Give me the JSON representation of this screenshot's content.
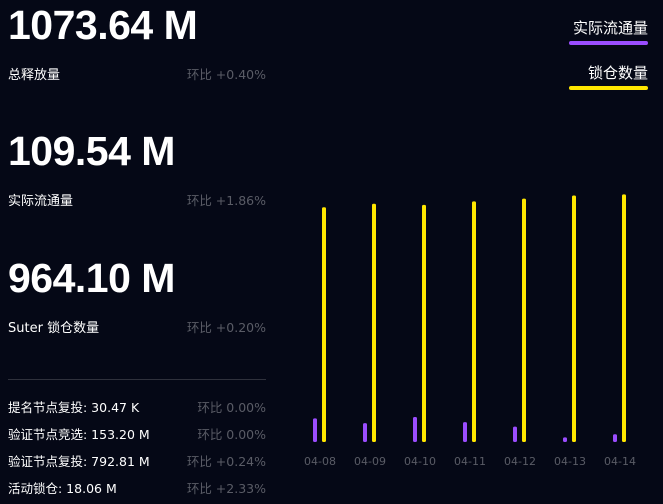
{
  "stats": [
    {
      "value": "1073.64 M",
      "label": "总释放量",
      "change": "环比 +0.40%"
    },
    {
      "value": "109.54 M",
      "label": "实际流通量",
      "change": "环比 +1.86%"
    },
    {
      "value": "964.10 M",
      "label": "Suter 锁仓数量",
      "change": "环比 +0.20%"
    }
  ],
  "details": [
    {
      "label": "提名节点复投: 30.47 K",
      "change": "环比 0.00%"
    },
    {
      "label": "验证节点竞选: 153.20 M",
      "change": "环比 0.00%"
    },
    {
      "label": "验证节点复投: 792.81 M",
      "change": "环比 +0.24%"
    },
    {
      "label": "活动锁仓: 18.06 M",
      "change": "环比 +2.33%"
    }
  ],
  "legend": [
    {
      "label": "实际流通量",
      "color": "#9b4dff"
    },
    {
      "label": "锁仓数量",
      "color": "#ffe600"
    }
  ],
  "chart_data": {
    "type": "bar",
    "categories": [
      "04-08",
      "04-09",
      "04-10",
      "04-11",
      "04-12",
      "04-13",
      "04-14"
    ],
    "series": [
      {
        "name": "实际流通量",
        "color": "#9b4dff",
        "values": [
          101,
          81,
          107,
          85,
          66,
          20,
          33
        ]
      },
      {
        "name": "锁仓数量",
        "color": "#ffe600",
        "values": [
          1005,
          1020,
          1015,
          1030,
          1042,
          1055,
          1060
        ]
      }
    ],
    "ylim": [
      0,
      1250
    ]
  }
}
